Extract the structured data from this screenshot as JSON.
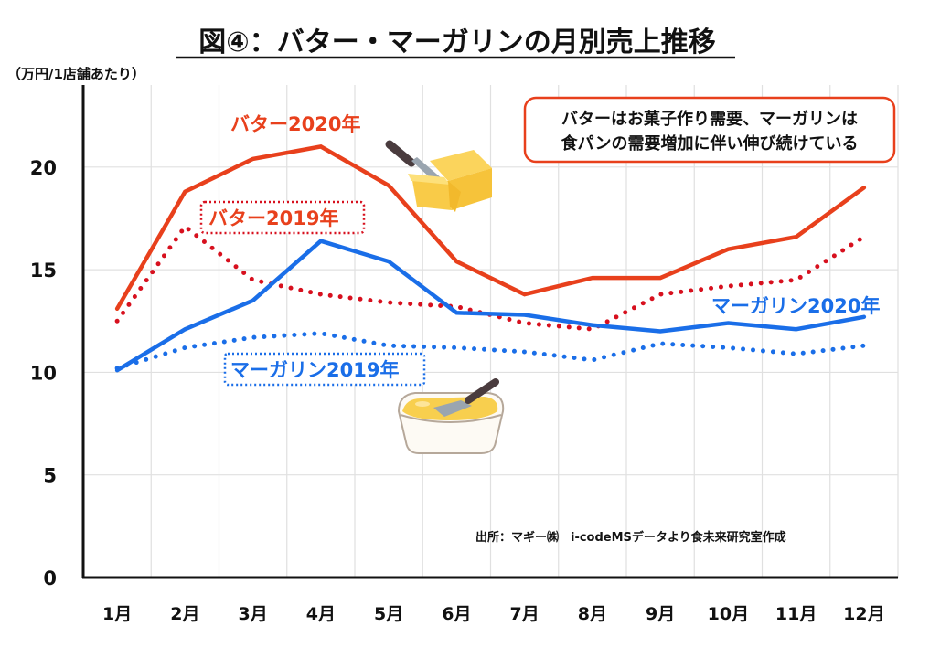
{
  "chart_data": {
    "type": "line",
    "title": "図④：バター・マーガリンの月別売上推移",
    "ylabel": "（万円/1店舗あたり）",
    "xlabel": "",
    "categories": [
      "1月",
      "2月",
      "3月",
      "4月",
      "5月",
      "6月",
      "7月",
      "8月",
      "9月",
      "10月",
      "11月",
      "12月"
    ],
    "ylim": [
      0,
      24
    ],
    "yticks": [
      0,
      5,
      10,
      15,
      20
    ],
    "ytick_labels": [
      "0",
      "5",
      "10",
      "15",
      "20"
    ],
    "grid": true,
    "series": [
      {
        "name": "バター2020年",
        "style": "solid",
        "color": "#e8401c",
        "values": [
          13.1,
          18.8,
          20.4,
          21.0,
          19.1,
          15.4,
          13.8,
          14.6,
          14.6,
          16.0,
          16.6,
          19.0
        ]
      },
      {
        "name": "バター2019年",
        "style": "dotted",
        "color": "#d7101e",
        "values": [
          12.5,
          17.1,
          14.5,
          13.8,
          13.4,
          13.2,
          12.4,
          12.1,
          13.8,
          14.2,
          14.5,
          16.6
        ]
      },
      {
        "name": "マーガリン2020年",
        "style": "solid",
        "color": "#1a6ee8",
        "values": [
          10.1,
          12.1,
          13.5,
          16.4,
          15.4,
          12.9,
          12.8,
          12.3,
          12.0,
          12.4,
          12.1,
          12.7
        ]
      },
      {
        "name": "マーガリン2019年",
        "style": "dotted",
        "color": "#1a6ee8",
        "values": [
          10.2,
          11.2,
          11.7,
          11.9,
          11.3,
          11.2,
          11.0,
          10.6,
          11.4,
          11.2,
          10.9,
          11.3
        ]
      }
    ],
    "annotations": {
      "callout_line1": "バターはお菓子作り需要、マーガリンは",
      "callout_line2": "食パンの需要増加に伴い伸び続けている",
      "source": "出所：マギー㈱　i-codeMSデータより食未来研究室作成"
    },
    "series_labels": {
      "butter_2020": "バター2020年",
      "butter_2019": "バター2019年",
      "margarine_2020": "マーガリン2020年",
      "margarine_2019": "マーガリン2019年"
    },
    "illustrations": [
      "butter-block-icon",
      "margarine-tub-icon"
    ]
  },
  "colors": {
    "butter_2020": "#e8401c",
    "butter_2019": "#d7101e",
    "margarine": "#1a6ee8",
    "callout_border": "#e8401c",
    "grid": "#dddddd",
    "axis": "#111111"
  }
}
